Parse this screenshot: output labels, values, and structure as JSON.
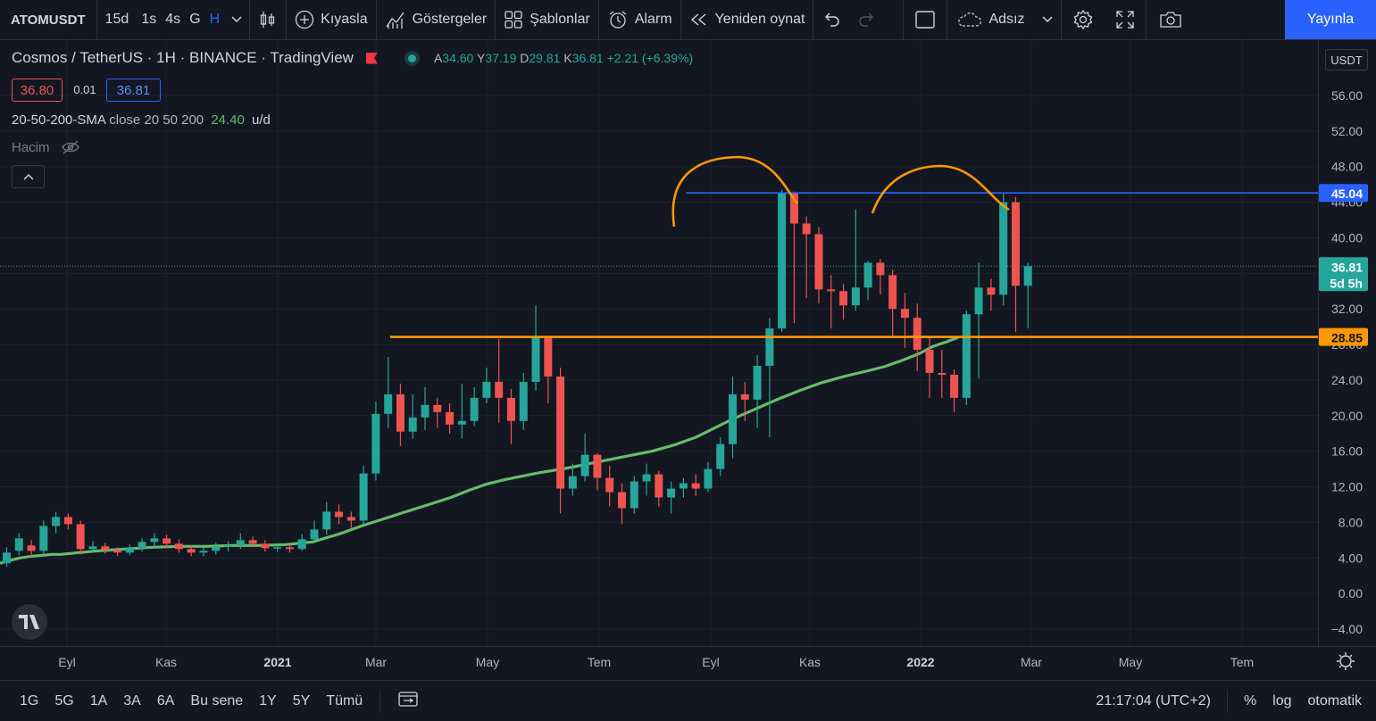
{
  "toolbar": {
    "symbol": "ATOMUSDT",
    "intervals": [
      "15d",
      "1s",
      "4s",
      "G",
      "H"
    ],
    "active_interval": "H",
    "compare": "Kıyasla",
    "indicators": "Göstergeler",
    "templates": "Şablonlar",
    "alert": "Alarm",
    "replay": "Yeniden oynat",
    "layout_name": "Adsız",
    "publish": "Yayınla"
  },
  "legend": {
    "title": "Cosmos / TetherUS · 1H · BINANCE · TradingView",
    "open_label": "A",
    "open": "34.60",
    "high_label": "Y",
    "high": "37.19",
    "low_label": "D",
    "low": "29.81",
    "close_label": "K",
    "close": "36.81",
    "change": "+2.21 (+6.39%)",
    "bid": "36.80",
    "spread": "0.01",
    "ask": "36.81"
  },
  "indicator": {
    "name": "20-50-200-SMA",
    "params": "close 20 50 200",
    "value": "24.40",
    "unit": "u/d"
  },
  "volume_label": "Hacim",
  "currency": "USDT",
  "bottom": {
    "ranges": [
      "1G",
      "5G",
      "1A",
      "3A",
      "6A",
      "Bu sene",
      "1Y",
      "5Y",
      "Tümü"
    ],
    "time": "21:17:04 (UTC+2)",
    "percent": "%",
    "log": "log",
    "auto": "otomatik"
  },
  "colors": {
    "up": "#26a69a",
    "down": "#ef5350",
    "sma": "#66bb6a",
    "resistance": "#2962ff",
    "support": "#ff9800",
    "annotation": "#ff9800"
  },
  "chart_data": {
    "type": "candlestick",
    "y_ticks": [
      "56.00",
      "52.00",
      "48.00",
      "44.00",
      "40.00",
      "36.00",
      "32.00",
      "28.00",
      "24.00",
      "20.00",
      "16.00",
      "12.00",
      "8.00",
      "4.00",
      "0.00",
      "−4.00"
    ],
    "x_ticks": [
      {
        "label": "Eyl",
        "bold": false
      },
      {
        "label": "Kas",
        "bold": false
      },
      {
        "label": "2021",
        "bold": true
      },
      {
        "label": "Mar",
        "bold": false
      },
      {
        "label": "May",
        "bold": false
      },
      {
        "label": "Tem",
        "bold": false
      },
      {
        "label": "Eyl",
        "bold": false
      },
      {
        "label": "Kas",
        "bold": false
      },
      {
        "label": "2022",
        "bold": true
      },
      {
        "label": "Mar",
        "bold": false
      },
      {
        "label": "May",
        "bold": false
      },
      {
        "label": "Tem",
        "bold": false
      }
    ],
    "ylim": [
      -5.8,
      59.5
    ],
    "candles": [
      [
        3.4,
        4.6,
        3.0,
        5.2
      ],
      [
        4.8,
        6.2,
        4.3,
        6.8
      ],
      [
        5.4,
        4.8,
        4.2,
        6.0
      ],
      [
        4.8,
        7.6,
        4.4,
        8.2
      ],
      [
        7.6,
        8.6,
        6.8,
        9.2
      ],
      [
        8.6,
        7.8,
        7.2,
        9.0
      ],
      [
        7.8,
        5.0,
        4.4,
        8.2
      ],
      [
        5.0,
        5.3,
        4.6,
        5.9
      ],
      [
        5.3,
        4.9,
        4.5,
        5.7
      ],
      [
        4.9,
        4.6,
        4.2,
        5.2
      ],
      [
        4.6,
        5.1,
        4.3,
        5.5
      ],
      [
        5.1,
        5.8,
        4.7,
        6.2
      ],
      [
        5.8,
        6.2,
        5.2,
        6.8
      ],
      [
        6.2,
        5.6,
        5.1,
        6.6
      ],
      [
        5.6,
        5.0,
        4.6,
        6.1
      ],
      [
        5.0,
        4.6,
        4.2,
        5.4
      ],
      [
        4.6,
        4.8,
        4.2,
        5.2
      ],
      [
        4.8,
        5.3,
        4.4,
        5.7
      ],
      [
        5.3,
        5.4,
        4.7,
        5.9
      ],
      [
        5.4,
        6.0,
        5.0,
        6.8
      ],
      [
        6.0,
        5.6,
        5.2,
        6.4
      ],
      [
        5.6,
        5.1,
        4.7,
        6.0
      ],
      [
        5.1,
        5.2,
        4.7,
        5.6
      ],
      [
        5.2,
        5.0,
        4.6,
        5.5
      ],
      [
        5.0,
        6.1,
        4.8,
        6.7
      ],
      [
        6.1,
        7.2,
        5.9,
        8.2
      ],
      [
        7.2,
        9.2,
        6.6,
        10.3
      ],
      [
        9.2,
        8.6,
        7.8,
        10.0
      ],
      [
        8.6,
        8.2,
        7.4,
        9.2
      ],
      [
        8.2,
        13.5,
        7.8,
        14.4
      ],
      [
        13.5,
        20.2,
        12.7,
        21.6
      ],
      [
        20.2,
        22.4,
        18.6,
        26.6
      ],
      [
        22.4,
        18.2,
        16.6,
        23.6
      ],
      [
        18.2,
        19.8,
        17.4,
        22.4
      ],
      [
        19.8,
        21.2,
        18.4,
        23.2
      ],
      [
        21.2,
        20.4,
        18.6,
        22.0
      ],
      [
        20.4,
        19.0,
        18.0,
        21.4
      ],
      [
        19.0,
        19.4,
        17.4,
        23.6
      ],
      [
        19.4,
        22.0,
        18.8,
        23.2
      ],
      [
        22.0,
        23.8,
        21.4,
        25.4
      ],
      [
        23.8,
        22.0,
        19.2,
        28.6
      ],
      [
        22.0,
        19.4,
        16.8,
        23.0
      ],
      [
        19.4,
        23.8,
        18.4,
        24.8
      ],
      [
        23.8,
        28.8,
        22.8,
        32.4
      ],
      [
        28.8,
        24.4,
        21.4,
        28.8
      ],
      [
        24.4,
        11.8,
        9.0,
        25.4
      ],
      [
        11.8,
        13.2,
        11.0,
        14.6
      ],
      [
        13.2,
        15.6,
        12.6,
        18.0
      ],
      [
        15.6,
        13.0,
        11.6,
        15.8
      ],
      [
        13.0,
        11.4,
        9.8,
        14.4
      ],
      [
        11.4,
        9.6,
        7.8,
        12.4
      ],
      [
        9.6,
        12.6,
        9.0,
        13.2
      ],
      [
        12.6,
        13.4,
        11.0,
        14.6
      ],
      [
        13.4,
        10.8,
        9.8,
        13.8
      ],
      [
        10.8,
        11.8,
        9.0,
        12.6
      ],
      [
        11.8,
        12.4,
        10.8,
        13.0
      ],
      [
        12.4,
        11.8,
        11.0,
        13.4
      ],
      [
        11.8,
        14.0,
        11.4,
        14.8
      ],
      [
        14.0,
        16.8,
        13.2,
        17.6
      ],
      [
        16.8,
        22.4,
        15.2,
        24.4
      ],
      [
        22.4,
        21.8,
        19.4,
        23.8
      ],
      [
        21.8,
        25.6,
        18.6,
        26.8
      ],
      [
        25.6,
        29.8,
        17.6,
        31.0
      ],
      [
        29.8,
        45.0,
        29.4,
        45.4
      ],
      [
        45.0,
        41.6,
        30.4,
        45.2
      ],
      [
        41.6,
        40.4,
        33.2,
        42.4
      ],
      [
        40.4,
        34.2,
        32.6,
        41.2
      ],
      [
        34.2,
        34.0,
        29.8,
        35.8
      ],
      [
        34.0,
        32.4,
        30.8,
        34.8
      ],
      [
        32.4,
        34.4,
        31.8,
        43.2
      ],
      [
        34.4,
        37.2,
        33.0,
        37.4
      ],
      [
        37.2,
        35.8,
        33.6,
        37.6
      ],
      [
        35.8,
        32.0,
        29.0,
        36.4
      ],
      [
        32.0,
        31.0,
        27.6,
        33.8
      ],
      [
        31.0,
        27.4,
        25.0,
        32.6
      ],
      [
        27.4,
        24.8,
        22.0,
        28.8
      ],
      [
        24.8,
        24.6,
        22.0,
        27.4
      ],
      [
        24.6,
        22.0,
        20.4,
        25.2
      ],
      [
        22.0,
        31.4,
        21.2,
        31.8
      ],
      [
        31.4,
        34.4,
        24.2,
        37.2
      ],
      [
        34.4,
        33.6,
        31.8,
        35.4
      ],
      [
        33.6,
        44.0,
        32.4,
        45.0
      ],
      [
        44.0,
        34.6,
        29.4,
        44.6
      ],
      [
        34.6,
        36.81,
        29.81,
        37.19
      ]
    ],
    "sma": [
      [
        0,
        3.4
      ],
      [
        10,
        3.7
      ],
      [
        22,
        4.0
      ],
      [
        36,
        4.2
      ],
      [
        48,
        4.3
      ],
      [
        58,
        4.4
      ],
      [
        68,
        4.4
      ],
      [
        88,
        4.6
      ],
      [
        110,
        4.8
      ],
      [
        140,
        5.0
      ],
      [
        170,
        5.2
      ],
      [
        200,
        5.3
      ],
      [
        230,
        5.3
      ],
      [
        260,
        5.4
      ],
      [
        290,
        5.4
      ],
      [
        320,
        5.5
      ],
      [
        350,
        5.8
      ],
      [
        380,
        6.7
      ],
      [
        405,
        7.6
      ],
      [
        430,
        8.4
      ],
      [
        455,
        9.2
      ],
      [
        480,
        10.0
      ],
      [
        505,
        10.8
      ],
      [
        525,
        11.6
      ],
      [
        545,
        12.3
      ],
      [
        565,
        12.8
      ],
      [
        585,
        13.2
      ],
      [
        605,
        13.6
      ],
      [
        630,
        14.0
      ],
      [
        655,
        14.5
      ],
      [
        680,
        15.0
      ],
      [
        705,
        15.5
      ],
      [
        730,
        16.0
      ],
      [
        755,
        16.7
      ],
      [
        780,
        17.6
      ],
      [
        800,
        18.6
      ],
      [
        820,
        19.6
      ],
      [
        845,
        20.7
      ],
      [
        870,
        21.8
      ],
      [
        895,
        22.8
      ],
      [
        920,
        23.7
      ],
      [
        945,
        24.4
      ],
      [
        970,
        25.0
      ],
      [
        990,
        25.5
      ],
      [
        1010,
        26.2
      ],
      [
        1030,
        27.0
      ],
      [
        1045,
        27.8
      ],
      [
        1060,
        28.3
      ],
      [
        1073,
        28.8
      ]
    ],
    "resistance": {
      "value": 45.04,
      "label": "45.04"
    },
    "support": {
      "value": 28.85,
      "label": "28.85"
    },
    "last": {
      "value": 36.81,
      "label": "36.81",
      "countdown": "5d 5h"
    }
  }
}
